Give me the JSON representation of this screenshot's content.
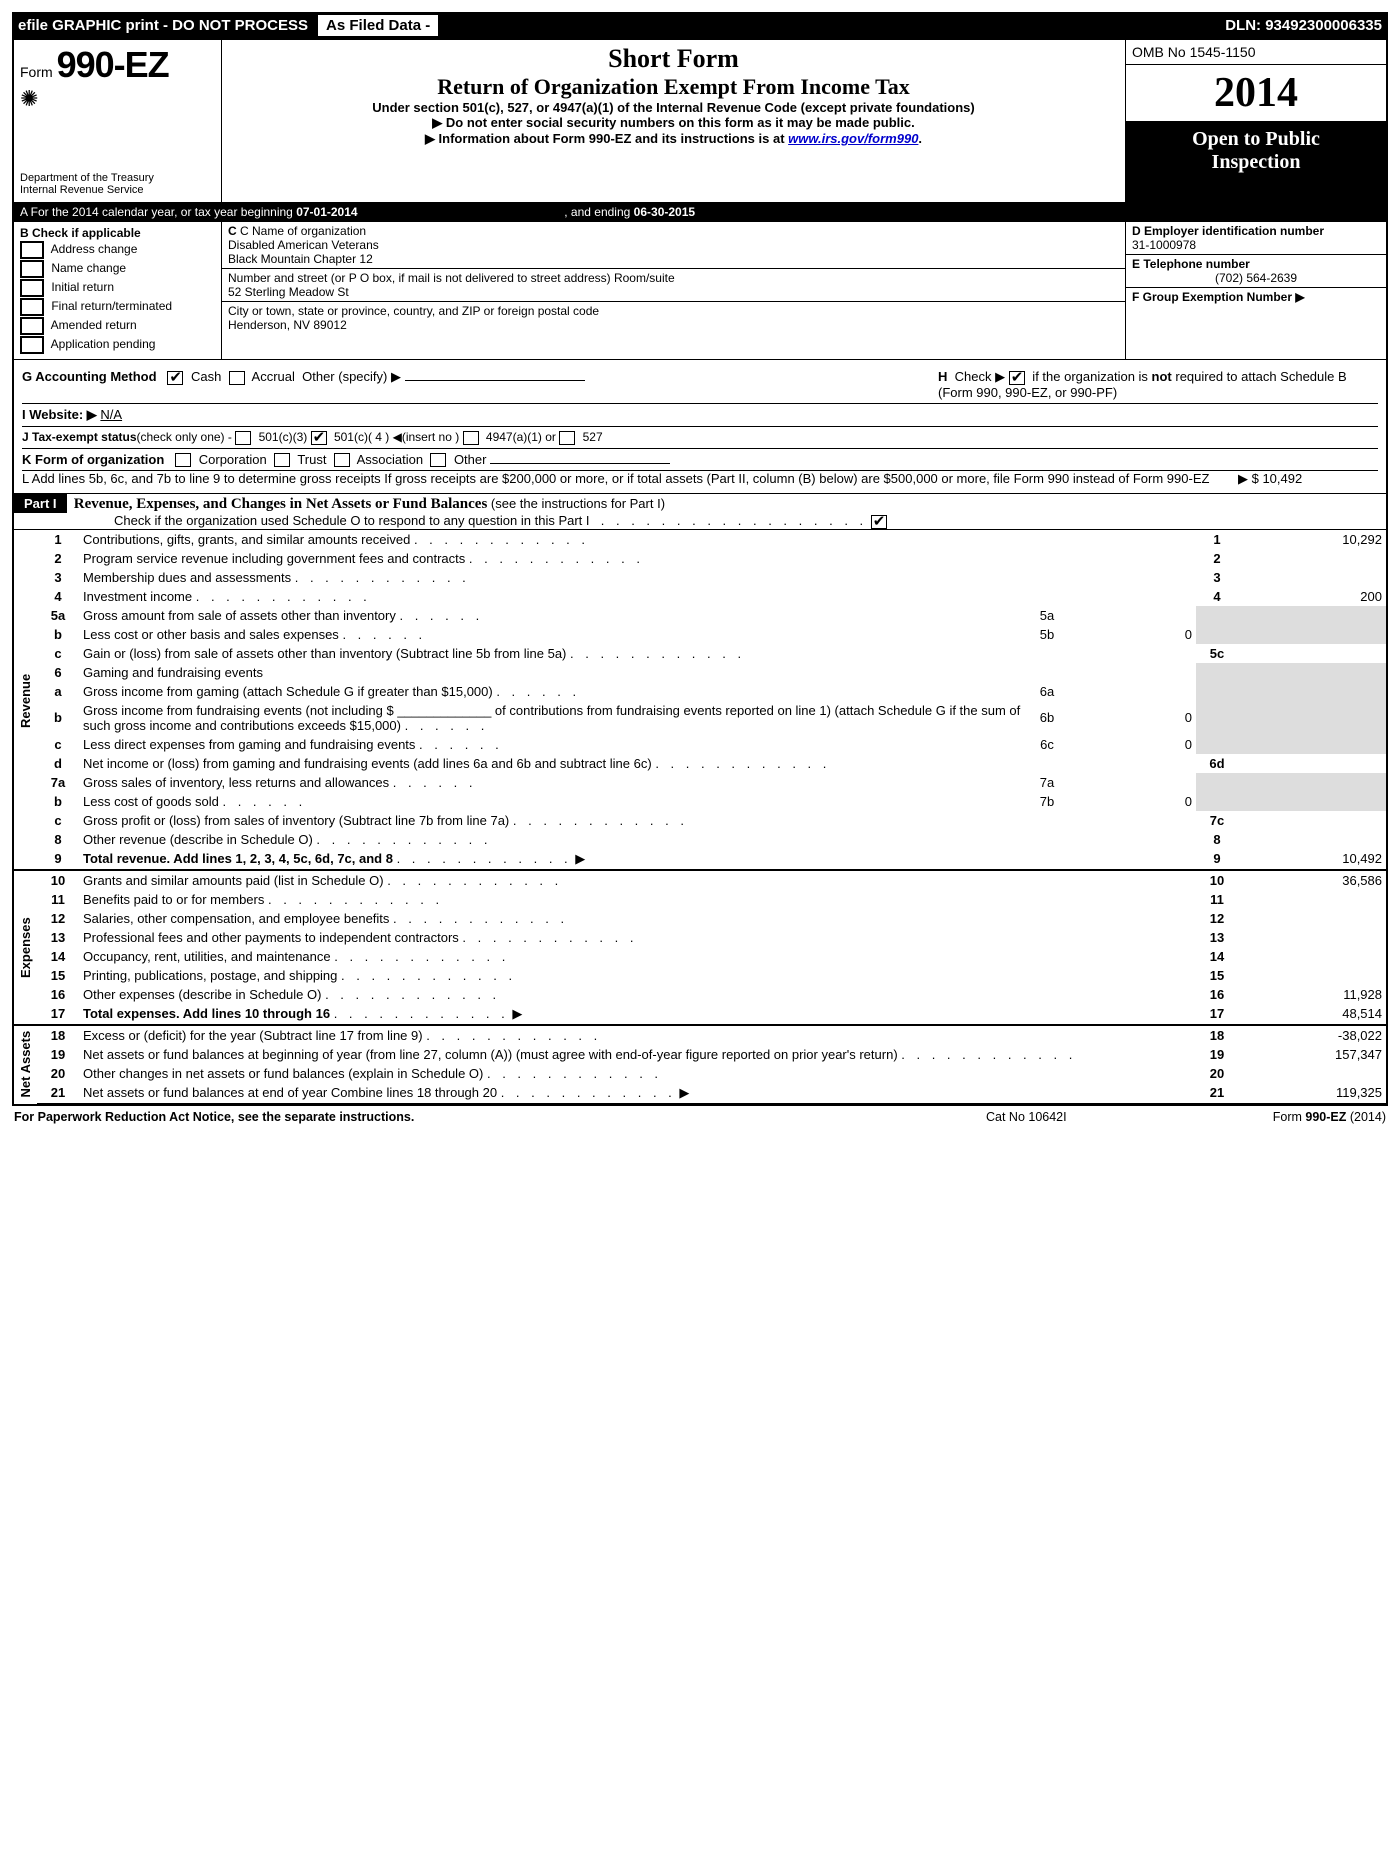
{
  "topbar": {
    "left": "efile GRAPHIC print - DO NOT PROCESS",
    "mid": "As Filed Data -",
    "right": "DLN: 93492300006335"
  },
  "header": {
    "form_prefix": "Form",
    "form_no": "990-EZ",
    "dept1": "Department of the Treasury",
    "dept2": "Internal Revenue Service",
    "title1": "Short Form",
    "title2": "Return of Organization Exempt From Income Tax",
    "subtitle": "Under section 501(c), 527, or 4947(a)(1) of the Internal Revenue Code (except private foundations)",
    "note1": "▶ Do not enter social security numbers on this form as it may be made public.",
    "note2_pre": "▶ Information about Form 990-EZ and its instructions is at ",
    "note2_link": "www.irs.gov/form990",
    "note2_post": ".",
    "omb": "OMB No 1545-1150",
    "year": "2014",
    "open1": "Open to Public",
    "open2": "Inspection"
  },
  "secA": {
    "a_text_pre": "A  For the 2014 calendar year, or tax year beginning ",
    "a_begin": "07-01-2014",
    "a_mid": ", and ending ",
    "a_end": "06-30-2015",
    "b_label": "B  Check if applicable",
    "b_items": [
      "Address change",
      "Name change",
      "Initial return",
      "Final return/terminated",
      "Amended return",
      "Application pending"
    ],
    "c_label": "C Name of organization",
    "c_val1": "Disabled American Veterans",
    "c_val2": "Black Mountain Chapter 12",
    "addr_label": "Number and street (or P O box, if mail is not delivered to street address)  Room/suite",
    "addr_val": "52 Sterling Meadow St",
    "city_label": "City or town, state or province, country, and ZIP or foreign postal code",
    "city_val": "Henderson, NV  89012",
    "d_label": "D Employer identification number",
    "d_val": "31-1000978",
    "e_label": "E Telephone number",
    "e_val": "(702) 564-2639",
    "f_label": "F Group Exemption Number  ▶"
  },
  "secG": {
    "g_label": "G Accounting Method",
    "g_cash": "Cash",
    "g_accrual": "Accrual",
    "g_other": "Other (specify) ▶",
    "h_text": "H  Check ▶       if the organization is not required to attach Schedule B (Form 990, 990-EZ, or 990-PF)",
    "i_label": "I Website: ▶",
    "i_val": "N/A",
    "j_label": "J Tax-exempt status",
    "j_note": "(check only one) -",
    "j_1": "501(c)(3)",
    "j_2": "501(c)( 4 ) ◀(insert no )",
    "j_3": "4947(a)(1) or",
    "j_4": "527",
    "k_label": "K Form of organization",
    "k_1": "Corporation",
    "k_2": "Trust",
    "k_3": "Association",
    "k_4": "Other",
    "l_text": "L Add lines 5b, 6c, and 7b to line 9 to determine gross receipts  If gross receipts are $200,000 or more, or if total assets (Part II, column (B) below) are $500,000 or more, file Form 990 instead of Form 990-EZ",
    "l_val": "▶ $ 10,492"
  },
  "part1": {
    "hdr": "Part I",
    "title": "Revenue, Expenses, and Changes in Net Assets or Fund Balances",
    "title_note": "(see the instructions for Part I)",
    "sub": "Check if the organization used Schedule O to respond to any question in this Part I",
    "sections": {
      "revenue": "Revenue",
      "expenses": "Expenses",
      "netassets": "Net Assets"
    }
  },
  "rows": [
    {
      "sec": "rev",
      "n": "1",
      "t": "Contributions, gifts, grants, and similar amounts received",
      "box": "1",
      "v": "10,292"
    },
    {
      "sec": "rev",
      "n": "2",
      "t": "Program service revenue including government fees and contracts",
      "box": "2",
      "v": ""
    },
    {
      "sec": "rev",
      "n": "3",
      "t": "Membership dues and assessments",
      "box": "3",
      "v": ""
    },
    {
      "sec": "rev",
      "n": "4",
      "t": "Investment income",
      "box": "4",
      "v": "200"
    },
    {
      "sec": "rev",
      "n": "5a",
      "t": "Gross amount from sale of assets other than inventory",
      "mini": "5a",
      "miniv": ""
    },
    {
      "sec": "rev",
      "n": "b",
      "t": "Less  cost or other basis and sales expenses",
      "mini": "5b",
      "miniv": "0"
    },
    {
      "sec": "rev",
      "n": "c",
      "t": "Gain or (loss) from sale of assets other than inventory (Subtract line 5b from line 5a)",
      "box": "5c",
      "v": ""
    },
    {
      "sec": "rev",
      "n": "6",
      "t": "Gaming and fundraising events",
      "shade": true
    },
    {
      "sec": "rev",
      "n": "a",
      "t": "Gross income from gaming (attach Schedule G if greater than $15,000)",
      "mini": "6a",
      "miniv": ""
    },
    {
      "sec": "rev",
      "n": "b",
      "t": "Gross income from fundraising events (not including $ _____________ of contributions from fundraising events reported on line 1) (attach Schedule G if the sum of such gross income and contributions exceeds $15,000)",
      "mini": "6b",
      "miniv": "0"
    },
    {
      "sec": "rev",
      "n": "c",
      "t": "Less  direct expenses from gaming and fundraising events",
      "mini": "6c",
      "miniv": "0"
    },
    {
      "sec": "rev",
      "n": "d",
      "t": "Net income or (loss) from gaming and fundraising events (add lines 6a and 6b and subtract line 6c)",
      "box": "6d",
      "v": ""
    },
    {
      "sec": "rev",
      "n": "7a",
      "t": "Gross sales of inventory, less returns and allowances",
      "mini": "7a",
      "miniv": ""
    },
    {
      "sec": "rev",
      "n": "b",
      "t": "Less  cost of goods sold",
      "mini": "7b",
      "miniv": "0"
    },
    {
      "sec": "rev",
      "n": "c",
      "t": "Gross profit or (loss) from sales of inventory (Subtract line 7b from line 7a)",
      "box": "7c",
      "v": ""
    },
    {
      "sec": "rev",
      "n": "8",
      "t": "Other revenue (describe in Schedule O)",
      "box": "8",
      "v": ""
    },
    {
      "sec": "rev",
      "n": "9",
      "t": "Total revenue. Add lines 1, 2, 3, 4, 5c, 6d, 7c, and 8",
      "box": "9",
      "v": "10,492",
      "bold": true,
      "arrow": true
    },
    {
      "sec": "exp",
      "n": "10",
      "t": "Grants and similar amounts paid (list in Schedule O)",
      "box": "10",
      "v": "36,586"
    },
    {
      "sec": "exp",
      "n": "11",
      "t": "Benefits paid to or for members",
      "box": "11",
      "v": ""
    },
    {
      "sec": "exp",
      "n": "12",
      "t": "Salaries, other compensation, and employee benefits",
      "box": "12",
      "v": ""
    },
    {
      "sec": "exp",
      "n": "13",
      "t": "Professional fees and other payments to independent contractors",
      "box": "13",
      "v": ""
    },
    {
      "sec": "exp",
      "n": "14",
      "t": "Occupancy, rent, utilities, and maintenance",
      "box": "14",
      "v": ""
    },
    {
      "sec": "exp",
      "n": "15",
      "t": "Printing, publications, postage, and shipping",
      "box": "15",
      "v": ""
    },
    {
      "sec": "exp",
      "n": "16",
      "t": "Other expenses (describe in Schedule O)",
      "box": "16",
      "v": "11,928"
    },
    {
      "sec": "exp",
      "n": "17",
      "t": "Total expenses. Add lines 10 through 16",
      "box": "17",
      "v": "48,514",
      "bold": true,
      "arrow": true
    },
    {
      "sec": "net",
      "n": "18",
      "t": "Excess or (deficit) for the year (Subtract line 17 from line 9)",
      "box": "18",
      "v": "-38,022"
    },
    {
      "sec": "net",
      "n": "19",
      "t": "Net assets or fund balances at beginning of year (from line 27, column (A)) (must agree with end-of-year figure reported on prior year's return)",
      "box": "19",
      "v": "157,347"
    },
    {
      "sec": "net",
      "n": "20",
      "t": "Other changes in net assets or fund balances (explain in Schedule O)",
      "box": "20",
      "v": ""
    },
    {
      "sec": "net",
      "n": "21",
      "t": "Net assets or fund balances at end of year Combine lines 18 through 20",
      "box": "21",
      "v": "119,325",
      "arrow": true
    }
  ],
  "footer": {
    "l": "For Paperwork Reduction Act Notice, see the separate instructions.",
    "m": "Cat No 10642I",
    "r": "Form 990-EZ (2014)"
  }
}
